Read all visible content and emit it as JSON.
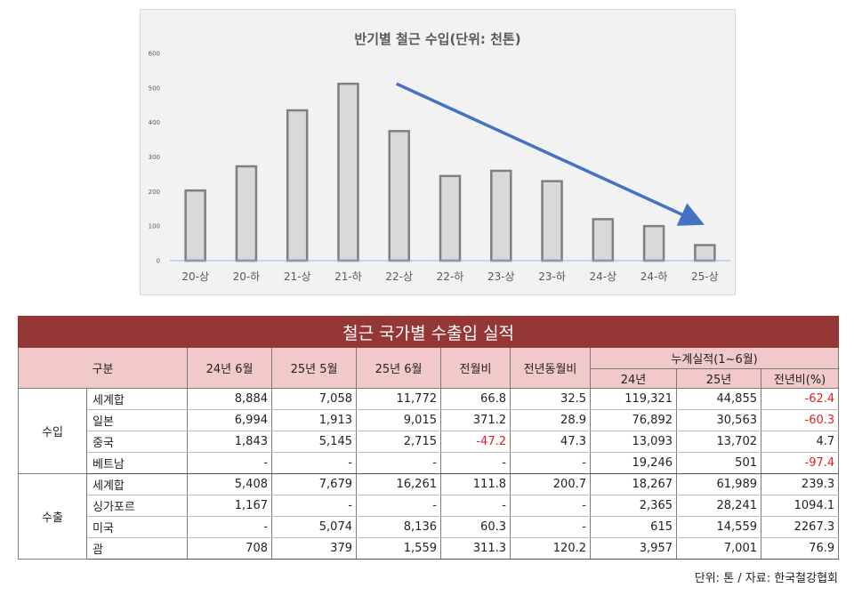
{
  "chart_data": {
    "type": "bar",
    "title": "반기별 철근 수입(단위: 천톤)",
    "categories": [
      "20-상",
      "20-하",
      "21-상",
      "21-하",
      "22-상",
      "22-하",
      "23-상",
      "23-하",
      "24-상",
      "24-하",
      "25-상"
    ],
    "values": [
      203,
      273,
      435,
      512,
      375,
      245,
      260,
      230,
      120,
      100,
      45
    ],
    "yticks": [
      "0",
      "100",
      "200",
      "300",
      "400",
      "500",
      "600"
    ],
    "ylim": [
      0,
      600
    ],
    "grid": false,
    "trend_arrow": {
      "from_category": "22-상",
      "to_category": "25-상",
      "from_value": 512,
      "to_value": 115,
      "color": "#4472c4"
    },
    "colors": {
      "bar_fill": "#d9d9d9",
      "bar_stroke": "#7f7f7f",
      "axis": "#8eb4e3",
      "background": "#f2f2f2"
    }
  },
  "table": {
    "title": "철근 국가별 수출입 실적",
    "headers": {
      "category": "구분",
      "cols": [
        "24년 6월",
        "25년 5월",
        "25년 6월",
        "전월비",
        "전년동월비"
      ],
      "cumulative": "누계실적(1~6월)",
      "cumulative_sub": [
        "24년",
        "25년",
        "전년비(%)"
      ]
    },
    "groups": [
      {
        "label": "수입",
        "rows": [
          {
            "name": "세계합",
            "values": [
              "8,884",
              "7,058",
              "11,772",
              "66.8",
              "32.5",
              "119,321",
              "44,855",
              "-62.4"
            ]
          },
          {
            "name": "일본",
            "values": [
              "6,994",
              "1,913",
              "9,015",
              "371.2",
              "28.9",
              "76,892",
              "30,563",
              "-60.3"
            ]
          },
          {
            "name": "중국",
            "values": [
              "1,843",
              "5,145",
              "2,715",
              "-47.2",
              "47.3",
              "13,093",
              "13,702",
              "4.7"
            ]
          },
          {
            "name": "베트남",
            "values": [
              "-",
              "-",
              "-",
              "-",
              "-",
              "19,246",
              "501",
              "-97.4"
            ]
          }
        ]
      },
      {
        "label": "수출",
        "rows": [
          {
            "name": "세계합",
            "values": [
              "5,408",
              "7,679",
              "16,261",
              "111.8",
              "200.7",
              "18,267",
              "61,989",
              "239.3"
            ]
          },
          {
            "name": "싱가포르",
            "values": [
              "1,167",
              "-",
              "-",
              "-",
              "-",
              "2,365",
              "28,241",
              "1094.1"
            ]
          },
          {
            "name": "미국",
            "values": [
              "-",
              "5,074",
              "8,136",
              "60.3",
              "-",
              "615",
              "14,559",
              "2267.3"
            ]
          },
          {
            "name": "괌",
            "values": [
              "708",
              "379",
              "1,559",
              "311.3",
              "120.2",
              "3,957",
              "7,001",
              "76.9"
            ]
          }
        ]
      }
    ],
    "colors": {
      "title_bg": "#953735",
      "header_bg": "#f2c9c9",
      "negative": "#e02020"
    }
  },
  "footer": {
    "note": "단위: 톤 / 자료: 한국철강협회"
  }
}
